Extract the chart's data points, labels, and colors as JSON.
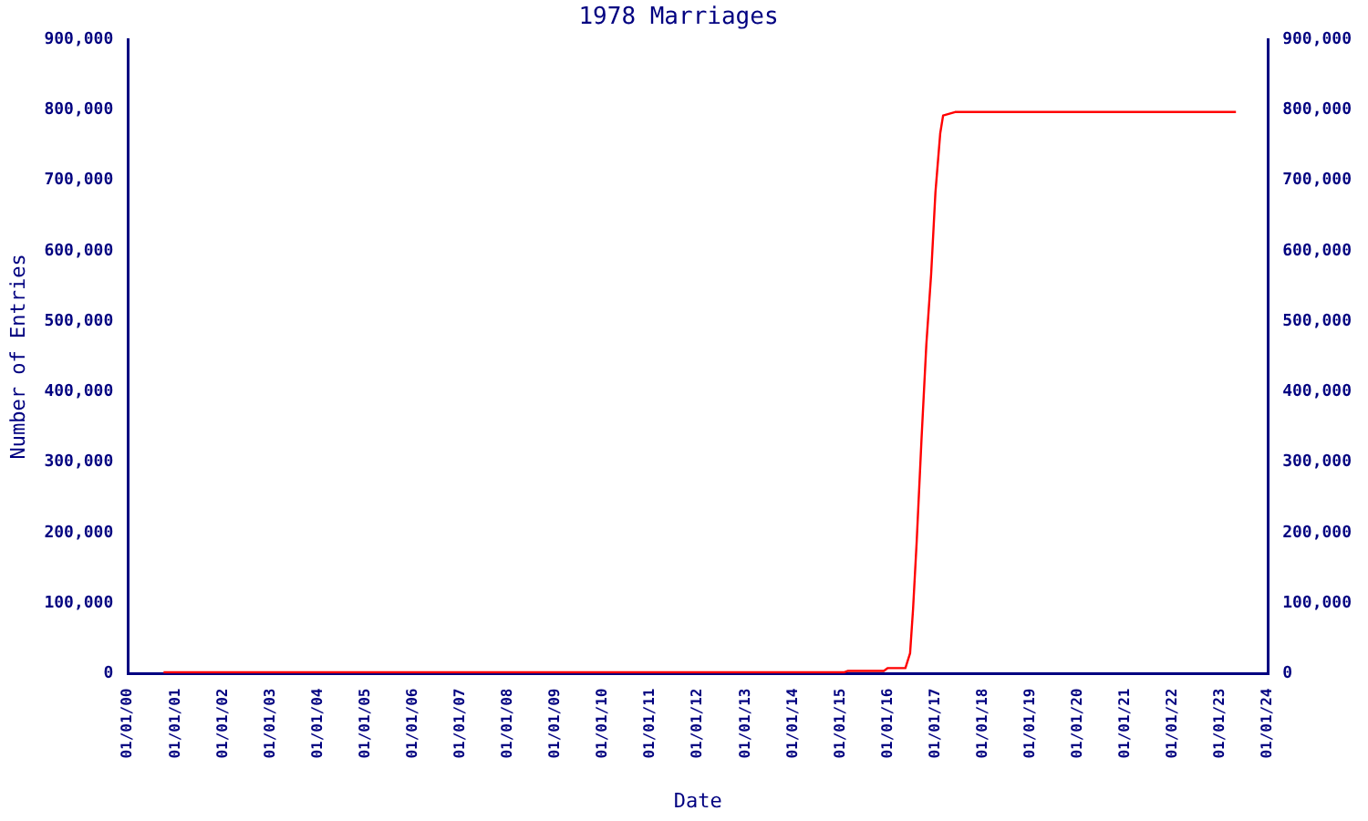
{
  "chart_data": {
    "type": "line",
    "title": "1978 Marriages",
    "xlabel": "Date",
    "ylabel": "Number of Entries",
    "grid": false,
    "legend": false,
    "marker": "none",
    "line_style": "solid",
    "x": [
      "2000-10-01",
      "2015-02-01",
      "2015-03-01",
      "2015-12-01",
      "2016-01-01",
      "2016-05-15",
      "2016-06-20",
      "2016-07-13",
      "2016-08-10",
      "2016-09-16",
      "2016-10-23",
      "2016-11-29",
      "2017-01-01",
      "2017-02-07",
      "2017-03-01",
      "2017-06-01",
      "2023-05-01"
    ],
    "series": [
      {
        "color": "#ff0000",
        "values": [
          2000,
          2000,
          4000,
          4000,
          8000,
          8000,
          29000,
          92000,
          188000,
          333000,
          467000,
          567000,
          683000,
          767000,
          792000,
          797000,
          797000
        ]
      }
    ],
    "xlim": [
      "2000-01-01",
      "2024-01-01"
    ],
    "xticks": [
      {
        "value": "2000-01-01",
        "label": "01/01/00"
      },
      {
        "value": "2001-01-01",
        "label": "01/01/01"
      },
      {
        "value": "2002-01-01",
        "label": "01/01/02"
      },
      {
        "value": "2003-01-01",
        "label": "01/01/03"
      },
      {
        "value": "2004-01-01",
        "label": "01/01/04"
      },
      {
        "value": "2005-01-01",
        "label": "01/01/05"
      },
      {
        "value": "2006-01-01",
        "label": "01/01/06"
      },
      {
        "value": "2007-01-01",
        "label": "01/01/07"
      },
      {
        "value": "2008-01-01",
        "label": "01/01/08"
      },
      {
        "value": "2009-01-01",
        "label": "01/01/09"
      },
      {
        "value": "2010-01-01",
        "label": "01/01/10"
      },
      {
        "value": "2011-01-01",
        "label": "01/01/11"
      },
      {
        "value": "2012-01-01",
        "label": "01/01/12"
      },
      {
        "value": "2013-01-01",
        "label": "01/01/13"
      },
      {
        "value": "2014-01-01",
        "label": "01/01/14"
      },
      {
        "value": "2015-01-01",
        "label": "01/01/15"
      },
      {
        "value": "2016-01-01",
        "label": "01/01/16"
      },
      {
        "value": "2017-01-01",
        "label": "01/01/17"
      },
      {
        "value": "2018-01-01",
        "label": "01/01/18"
      },
      {
        "value": "2019-01-01",
        "label": "01/01/19"
      },
      {
        "value": "2020-01-01",
        "label": "01/01/20"
      },
      {
        "value": "2021-01-01",
        "label": "01/01/21"
      },
      {
        "value": "2022-01-01",
        "label": "01/01/22"
      },
      {
        "value": "2023-01-01",
        "label": "01/01/23"
      },
      {
        "value": "2024-01-01",
        "label": "01/01/24"
      }
    ],
    "ylim": [
      0,
      900000
    ],
    "yticks": [
      0,
      {
        "value": 100000,
        "label": "100,000"
      },
      {
        "value": 200000,
        "label": "200,000"
      },
      {
        "value": 300000,
        "label": "300,000"
      },
      {
        "value": 400000,
        "label": "400,000"
      },
      {
        "value": 500000,
        "label": "500,000"
      },
      {
        "value": 600000,
        "label": "600,000"
      },
      {
        "value": 700000,
        "label": "700,000"
      },
      {
        "value": 800000,
        "label": "800,000"
      },
      {
        "value": 900000,
        "label": "900,000"
      }
    ],
    "y2lim": [
      0,
      900000
    ],
    "y2ticks": [
      0,
      {
        "value": 100000,
        "label": "100,000"
      },
      {
        "value": 200000,
        "label": "200,000"
      },
      {
        "value": 300000,
        "label": "300,000"
      },
      {
        "value": 400000,
        "label": "400,000"
      },
      {
        "value": 500000,
        "label": "500,000"
      },
      {
        "value": 600000,
        "label": "600,000"
      },
      {
        "value": 700000,
        "label": "700,000"
      },
      {
        "value": 800000,
        "label": "800,000"
      },
      {
        "value": 900000,
        "label": "900,000"
      }
    ]
  }
}
